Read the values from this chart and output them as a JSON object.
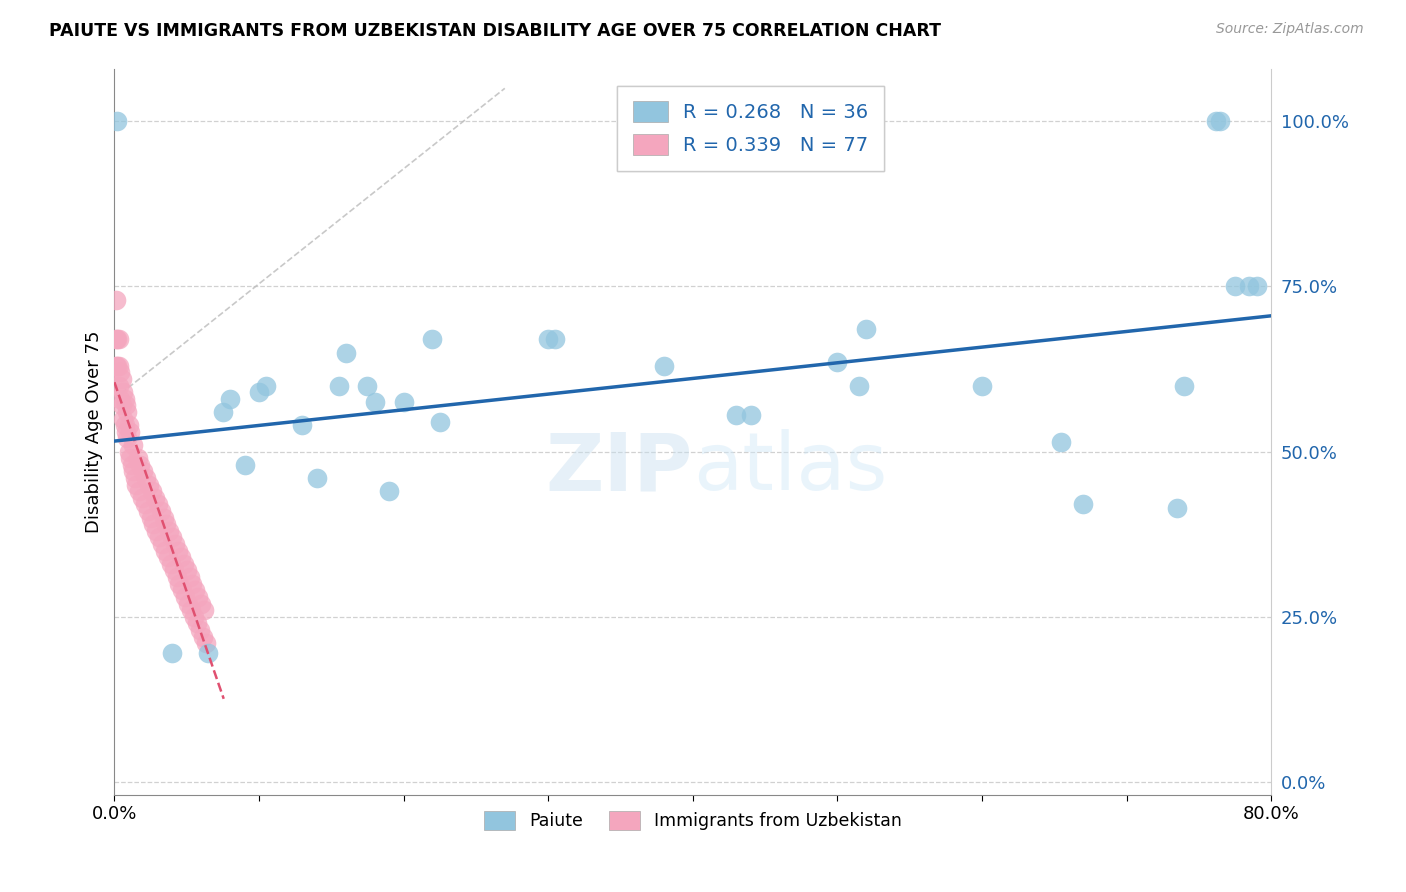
{
  "title": "PAIUTE VS IMMIGRANTS FROM UZBEKISTAN DISABILITY AGE OVER 75 CORRELATION CHART",
  "source": "Source: ZipAtlas.com",
  "ylabel": "Disability Age Over 75",
  "x_label_paiute": "Paiute",
  "x_label_immig": "Immigrants from Uzbekistan",
  "legend_r1": "0.268",
  "legend_n1": "36",
  "legend_r2": "0.339",
  "legend_n2": "77",
  "xlim": [
    0.0,
    0.8
  ],
  "ylim": [
    -0.02,
    1.08
  ],
  "ytick_labels": [
    "0.0%",
    "25.0%",
    "50.0%",
    "75.0%",
    "100.0%"
  ],
  "ytick_values": [
    0.0,
    0.25,
    0.5,
    0.75,
    1.0
  ],
  "xtick_labels": [
    "0.0%",
    "",
    "",
    "",
    "",
    "",
    "",
    "",
    "80.0%"
  ],
  "xtick_values": [
    0.0,
    0.1,
    0.2,
    0.3,
    0.4,
    0.5,
    0.6,
    0.7,
    0.8
  ],
  "blue_color": "#92c5de",
  "pink_color": "#f4a6be",
  "line_blue": "#2166ac",
  "line_pink": "#e05070",
  "text_blue": "#2166ac",
  "grid_color": "#cccccc",
  "watermark_zip": "ZIP",
  "watermark_atlas": "atlas",
  "paiute_x": [
    0.002,
    0.04,
    0.065,
    0.075,
    0.08,
    0.09,
    0.1,
    0.105,
    0.13,
    0.14,
    0.155,
    0.16,
    0.175,
    0.18,
    0.19,
    0.2,
    0.22,
    0.225,
    0.3,
    0.305,
    0.38,
    0.43,
    0.44,
    0.5,
    0.515,
    0.52,
    0.6,
    0.655,
    0.67,
    0.735,
    0.74,
    0.762,
    0.765,
    0.775,
    0.785,
    0.79
  ],
  "paiute_y": [
    1.0,
    0.195,
    0.195,
    0.56,
    0.58,
    0.48,
    0.59,
    0.6,
    0.54,
    0.46,
    0.6,
    0.65,
    0.6,
    0.575,
    0.44,
    0.575,
    0.67,
    0.545,
    0.67,
    0.67,
    0.63,
    0.555,
    0.555,
    0.635,
    0.6,
    0.685,
    0.6,
    0.515,
    0.42,
    0.415,
    0.6,
    1.0,
    1.0,
    0.75,
    0.75,
    0.75
  ],
  "immig_x": [
    0.001,
    0.001,
    0.001,
    0.002,
    0.002,
    0.003,
    0.003,
    0.003,
    0.004,
    0.004,
    0.005,
    0.005,
    0.006,
    0.006,
    0.007,
    0.007,
    0.008,
    0.008,
    0.009,
    0.009,
    0.01,
    0.01,
    0.011,
    0.011,
    0.012,
    0.013,
    0.013,
    0.014,
    0.015,
    0.016,
    0.017,
    0.018,
    0.019,
    0.02,
    0.021,
    0.022,
    0.023,
    0.024,
    0.025,
    0.026,
    0.027,
    0.028,
    0.029,
    0.03,
    0.031,
    0.032,
    0.033,
    0.034,
    0.035,
    0.036,
    0.037,
    0.038,
    0.039,
    0.04,
    0.041,
    0.042,
    0.043,
    0.044,
    0.045,
    0.046,
    0.047,
    0.048,
    0.049,
    0.05,
    0.051,
    0.052,
    0.053,
    0.054,
    0.055,
    0.056,
    0.057,
    0.058,
    0.059,
    0.06,
    0.061,
    0.062,
    0.063
  ],
  "immig_y": [
    0.63,
    0.67,
    0.73,
    0.63,
    0.67,
    0.6,
    0.63,
    0.67,
    0.58,
    0.62,
    0.57,
    0.61,
    0.55,
    0.59,
    0.54,
    0.58,
    0.53,
    0.57,
    0.52,
    0.56,
    0.5,
    0.54,
    0.49,
    0.53,
    0.48,
    0.47,
    0.51,
    0.46,
    0.45,
    0.49,
    0.44,
    0.48,
    0.43,
    0.47,
    0.42,
    0.46,
    0.41,
    0.45,
    0.4,
    0.44,
    0.39,
    0.43,
    0.38,
    0.42,
    0.37,
    0.41,
    0.36,
    0.4,
    0.35,
    0.39,
    0.34,
    0.38,
    0.33,
    0.37,
    0.32,
    0.36,
    0.31,
    0.35,
    0.3,
    0.34,
    0.29,
    0.33,
    0.28,
    0.32,
    0.27,
    0.31,
    0.26,
    0.3,
    0.25,
    0.29,
    0.24,
    0.28,
    0.23,
    0.27,
    0.22,
    0.26,
    0.21
  ]
}
